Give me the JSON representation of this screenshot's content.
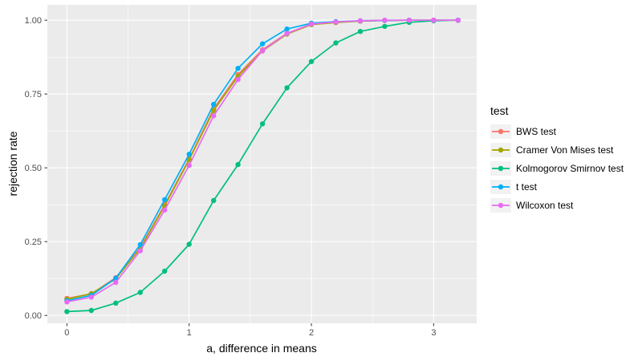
{
  "chart_data": {
    "type": "line",
    "title": "",
    "xlabel": "a, difference in means",
    "ylabel": "rejection rate",
    "legend": {
      "title": "test",
      "position": "right"
    },
    "x_ticks": [
      0,
      1,
      2,
      3
    ],
    "x_tick_labels": [
      "0",
      "1",
      "2",
      "3"
    ],
    "y_ticks": [
      0,
      0.25,
      0.5,
      0.75,
      1
    ],
    "y_tick_labels": [
      "0.00",
      "0.25",
      "0.50",
      "0.75",
      "1.00"
    ],
    "x_minor_ticks": [
      0.5,
      1.5,
      2.5
    ],
    "y_minor_ticks": [
      0.125,
      0.375,
      0.625,
      0.875
    ],
    "xlim": [
      -0.16,
      3.352
    ],
    "ylim": [
      -0.0266,
      1.0521
    ],
    "grid": true,
    "x": [
      0,
      0.2,
      0.4,
      0.6,
      0.8,
      1,
      1.2,
      1.4,
      1.6,
      1.8,
      2,
      2.2,
      2.4,
      2.6,
      2.8,
      3,
      3.2
    ],
    "series": [
      {
        "name": "BWS test",
        "color": "#F8766D",
        "values": [
          0.058,
          0.073,
          0.128,
          0.23,
          0.375,
          0.53,
          0.7,
          0.816,
          0.9,
          0.956,
          0.986,
          0.993,
          0.997,
          0.999,
          1.0,
          1.0,
          1.0
        ]
      },
      {
        "name": "Cramer Von Mises test",
        "color": "#A3A500",
        "values": [
          0.055,
          0.074,
          0.124,
          0.227,
          0.371,
          0.527,
          0.694,
          0.81,
          0.896,
          0.953,
          0.985,
          0.992,
          0.997,
          0.999,
          1.0,
          1.0,
          1.0
        ]
      },
      {
        "name": "Kolmogorov Smirnov test",
        "color": "#00BF7D",
        "values": [
          0.013,
          0.017,
          0.042,
          0.078,
          0.15,
          0.241,
          0.389,
          0.511,
          0.649,
          0.771,
          0.86,
          0.923,
          0.962,
          0.979,
          0.993,
          0.998,
          1.0
        ]
      },
      {
        "name": "t test",
        "color": "#00B0F6",
        "values": [
          0.05,
          0.068,
          0.126,
          0.24,
          0.392,
          0.546,
          0.715,
          0.837,
          0.92,
          0.97,
          0.99,
          0.995,
          0.998,
          0.999,
          1.0,
          1.0,
          1.0
        ]
      },
      {
        "name": "Wilcoxon test",
        "color": "#E76BF3",
        "values": [
          0.046,
          0.062,
          0.112,
          0.219,
          0.357,
          0.508,
          0.676,
          0.799,
          0.897,
          0.955,
          0.987,
          0.994,
          0.998,
          1.0,
          1.0,
          1.0,
          1.0
        ]
      }
    ],
    "style": {
      "panel_bg": "#EBEBEB",
      "grid_color": "#FFFFFF",
      "tick_color": "#333333",
      "tick_label_color": "#4D4D4D",
      "legend_key_bg": "#F2F2F2"
    }
  }
}
